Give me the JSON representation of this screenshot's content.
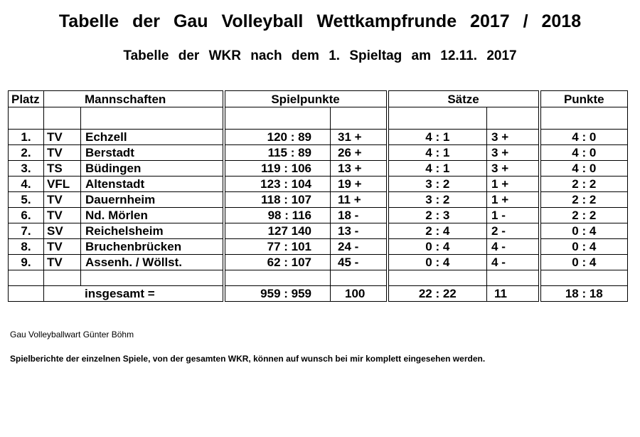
{
  "title": "Tabelle der Gau Volleyball Wettkampfrunde 2017 / 2018",
  "subtitle": "Tabelle der WKR nach dem 1. Spieltag am 12.11. 2017",
  "headers": {
    "platz": "Platz",
    "mannschaften": "Mannschaften",
    "spielpunkte": "Spielpunkte",
    "saetze": "Sätze",
    "punkte": "Punkte"
  },
  "rows": [
    {
      "platz": "1.",
      "verein": "TV",
      "name": "Echzell",
      "spielpunkte": "120 : 89",
      "sp_diff": "31 +",
      "saetze": "4 : 1",
      "s_diff": "3 +",
      "punkte": "4 : 0"
    },
    {
      "platz": "2.",
      "verein": "TV",
      "name": "Berstadt",
      "spielpunkte": "115 : 89",
      "sp_diff": "26 +",
      "saetze": "4 : 1",
      "s_diff": "3 +",
      "punkte": "4 : 0"
    },
    {
      "platz": "3.",
      "verein": "TS",
      "name": "Büdingen",
      "spielpunkte": "119 : 106",
      "sp_diff": "13 +",
      "saetze": "4 : 1",
      "s_diff": "3 +",
      "punkte": "4 : 0"
    },
    {
      "platz": "4.",
      "verein": "VFL",
      "name": "Altenstadt",
      "spielpunkte": "123 : 104",
      "sp_diff": "19 +",
      "saetze": "3 : 2",
      "s_diff": "1 +",
      "punkte": "2 : 2"
    },
    {
      "platz": "5.",
      "verein": "TV",
      "name": "Dauernheim",
      "spielpunkte": "118 : 107",
      "sp_diff": "11 +",
      "saetze": "3 : 2",
      "s_diff": "1 +",
      "punkte": "2 : 2"
    },
    {
      "platz": "6.",
      "verein": "TV",
      "name": "Nd. Mörlen",
      "spielpunkte": "98 : 116",
      "sp_diff": "18 -",
      "saetze": "2 : 3",
      "s_diff": "1 -",
      "punkte": "2 : 2"
    },
    {
      "platz": "7.",
      "verein": "SV",
      "name": "Reichelsheim",
      "spielpunkte": "127   140",
      "sp_diff": "13 -",
      "saetze": "2 : 4",
      "s_diff": "2 -",
      "punkte": "0 : 4"
    },
    {
      "platz": "8.",
      "verein": "TV",
      "name": "Bruchenbrücken",
      "spielpunkte": "77 : 101",
      "sp_diff": "24 -",
      "saetze": "0 : 4",
      "s_diff": "4 -",
      "punkte": "0 : 4"
    },
    {
      "platz": "9.",
      "verein": "TV",
      "name": "Assenh. / Wöllst.",
      "spielpunkte": "62 : 107",
      "sp_diff": "45 -",
      "saetze": "0 : 4",
      "s_diff": "4 -",
      "punkte": "0 : 4"
    }
  ],
  "total": {
    "label": "insgesamt =",
    "spielpunkte": "959 : 959",
    "sp_diff": "100",
    "saetze": "22 : 22",
    "s_diff": "11",
    "punkte": "18 : 18"
  },
  "footer": {
    "author": "Gau Volleyballwart  Günter Böhm",
    "note": "Spielberichte der einzelnen Spiele, von der gesamten WKR, können auf wunsch bei mir komplett eingesehen werden."
  }
}
